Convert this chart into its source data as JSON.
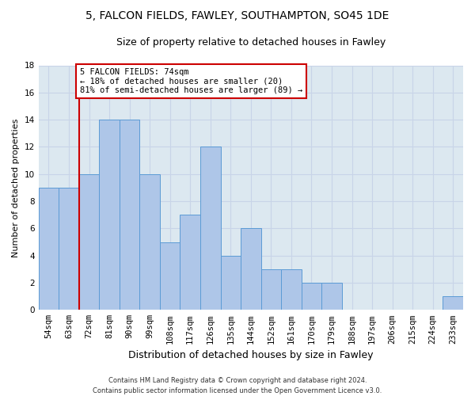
{
  "title1": "5, FALCON FIELDS, FAWLEY, SOUTHAMPTON, SO45 1DE",
  "title2": "Size of property relative to detached houses in Fawley",
  "xlabel": "Distribution of detached houses by size in Fawley",
  "ylabel": "Number of detached properties",
  "footnote": "Contains HM Land Registry data © Crown copyright and database right 2024.\nContains public sector information licensed under the Open Government Licence v3.0.",
  "bar_labels": [
    "54sqm",
    "63sqm",
    "72sqm",
    "81sqm",
    "90sqm",
    "99sqm",
    "108sqm",
    "117sqm",
    "126sqm",
    "135sqm",
    "144sqm",
    "152sqm",
    "161sqm",
    "170sqm",
    "179sqm",
    "188sqm",
    "197sqm",
    "206sqm",
    "215sqm",
    "224sqm",
    "233sqm"
  ],
  "bar_values": [
    9,
    9,
    10,
    14,
    14,
    10,
    5,
    7,
    12,
    4,
    6,
    3,
    3,
    2,
    2,
    0,
    0,
    0,
    0,
    0,
    1
  ],
  "bar_color": "#aec6e8",
  "bar_edge_color": "#5b9bd5",
  "highlight_index": 2,
  "highlight_line_color": "#cc0000",
  "annotation_text": "5 FALCON FIELDS: 74sqm\n← 18% of detached houses are smaller (20)\n81% of semi-detached houses are larger (89) →",
  "annotation_box_color": "#cc0000",
  "ylim": [
    0,
    18
  ],
  "yticks": [
    0,
    2,
    4,
    6,
    8,
    10,
    12,
    14,
    16,
    18
  ],
  "grid_color": "#c8d4e8",
  "background_color": "#dce8f0",
  "fig_background": "#ffffff",
  "title1_fontsize": 10,
  "title2_fontsize": 9,
  "xlabel_fontsize": 9,
  "ylabel_fontsize": 8,
  "tick_fontsize": 7.5,
  "footnote_fontsize": 6
}
